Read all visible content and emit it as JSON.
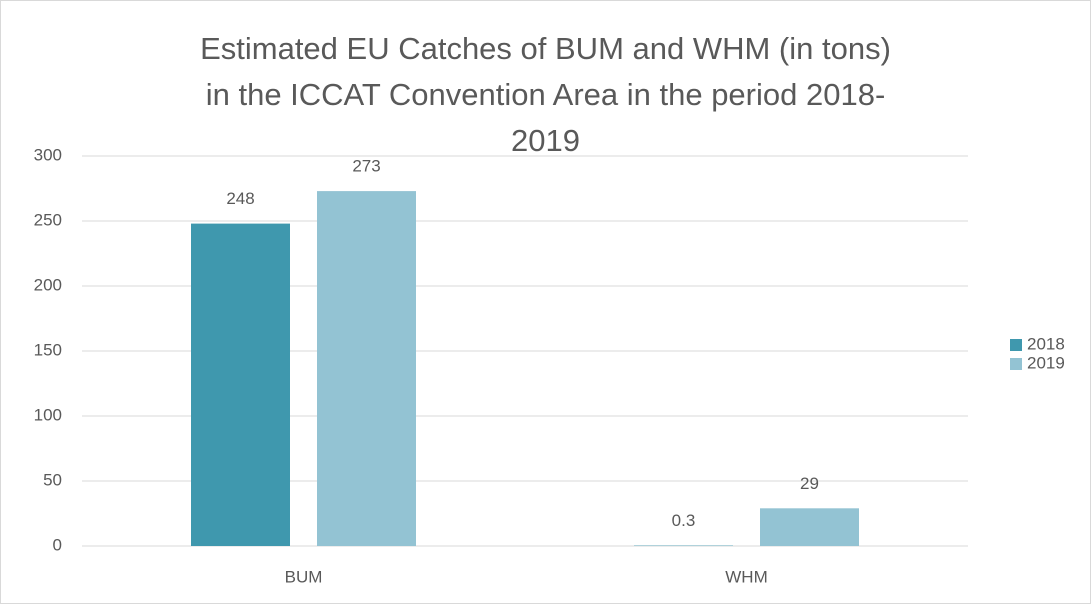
{
  "chart_data": {
    "type": "bar",
    "title": "Estimated EU Catches of BUM and WHM (in tons) in the ICCAT Convention Area in the period 2018-2019",
    "categories": [
      "BUM",
      "WHM"
    ],
    "series": [
      {
        "name": "2018",
        "color": "#3f98ae",
        "values": [
          248,
          0.3
        ]
      },
      {
        "name": "2019",
        "color": "#93c3d3",
        "values": [
          273,
          29
        ]
      }
    ],
    "ylim": [
      0,
      300
    ],
    "yticks": [
      0,
      50,
      100,
      150,
      200,
      250,
      300
    ],
    "grid": true,
    "legend": "right"
  }
}
